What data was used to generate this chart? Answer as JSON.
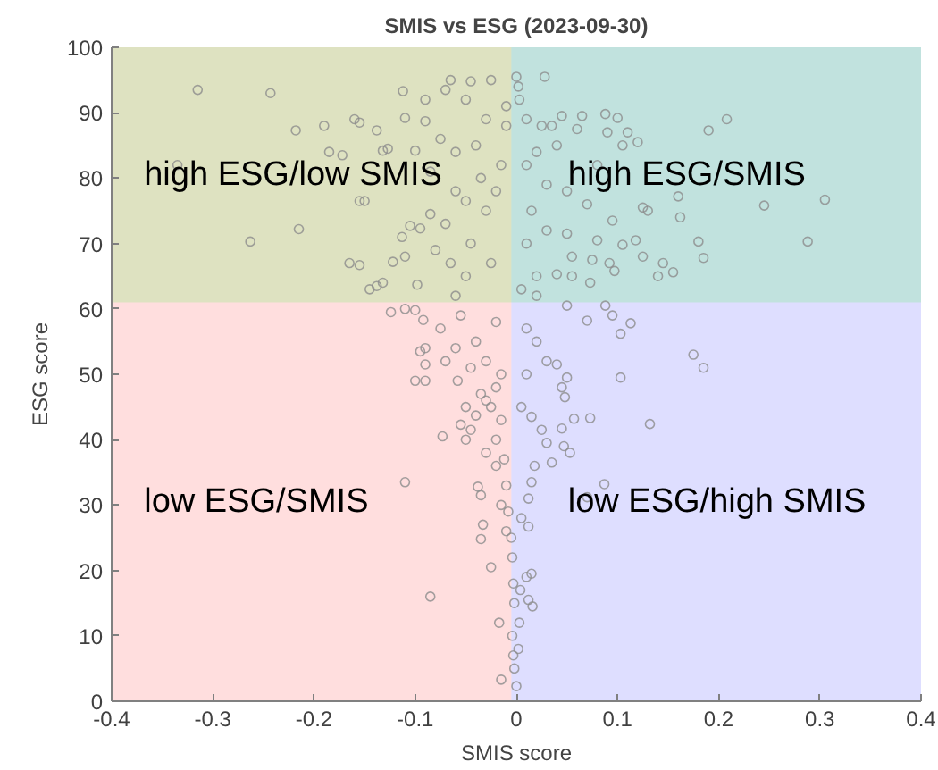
{
  "chart_data": {
    "type": "scatter",
    "title": "SMIS vs ESG (2023-09-30)",
    "xlabel": "SMIS score",
    "ylabel": "ESG score",
    "xlim": [
      -0.4,
      0.4
    ],
    "xticks": [
      -0.4,
      -0.3,
      -0.2,
      -0.1,
      0,
      0.1,
      0.2,
      0.3,
      0.4
    ],
    "ylim": [
      0,
      100
    ],
    "yticks": [
      0,
      10,
      20,
      30,
      40,
      50,
      60,
      70,
      80,
      90,
      100
    ],
    "grid": false,
    "marker": "circle",
    "bands": [
      {
        "axis": "x",
        "from": -0.4,
        "to": -0.005,
        "color": "#ff0000"
      },
      {
        "axis": "x",
        "from": -0.005,
        "to": 0.4,
        "color": "#0000ff"
      },
      {
        "axis": "y",
        "from": 61,
        "to": 100,
        "color": "#00ff00"
      }
    ],
    "annotations": [
      "high ESG/low SMIS",
      "high ESG/SMIS",
      "low ESG/SMIS",
      "low ESG/high SMIS"
    ],
    "series": [
      {
        "color": "#8c8c8c",
        "x": [
          -0.315,
          -0.243,
          -0.218,
          -0.19,
          -0.16,
          -0.155,
          -0.335,
          -0.263,
          -0.215,
          -0.172,
          -0.185,
          -0.155,
          -0.15,
          -0.138,
          -0.132,
          -0.127,
          -0.112,
          -0.11,
          -0.1,
          -0.09,
          -0.09,
          -0.065,
          -0.07,
          -0.045,
          -0.025,
          -0.05,
          -0.145,
          -0.138,
          -0.132,
          -0.165,
          -0.155,
          -0.122,
          -0.113,
          -0.11,
          -0.105,
          -0.095,
          -0.085,
          -0.098,
          -0.124,
          -0.11,
          -0.1,
          -0.092,
          -0.09,
          -0.095,
          -0.09,
          -0.1,
          -0.09,
          -0.07,
          -0.058,
          -0.073,
          -0.055,
          -0.05,
          -0.045,
          -0.11,
          -0.085,
          -0.033,
          -0.025,
          -0.017,
          -0.015,
          -0.035,
          -0.038,
          -0.035,
          -0.04,
          -0.03,
          -0.02,
          -0.04,
          -0.035,
          -0.03,
          -0.045,
          -0.025,
          -0.05,
          -0.06,
          -0.02,
          -0.04,
          -0.03,
          -0.015,
          -0.025,
          -0.02,
          -0.012,
          -0.01,
          -0.008,
          -0.005,
          -0.004,
          -0.003,
          -0.002,
          -0.004,
          -0.003,
          -0.002,
          -0.01,
          -0.015,
          -0.02,
          -0.06,
          -0.07,
          -0.08,
          -0.065,
          -0.055,
          -0.075,
          -0.06,
          -0.045,
          -0.035,
          -0.05,
          -0.015,
          -0.02,
          -0.03,
          -0.015,
          -0.01,
          -0.01,
          -0.03,
          -0.075,
          -0.06,
          -0.085,
          -0.05,
          0.028,
          0.0,
          0.002,
          0.003,
          0.01,
          0.025,
          0.035,
          0.045,
          0.065,
          0.088,
          0.1,
          0.208,
          0.19,
          0.09,
          0.11,
          0.105,
          0.12,
          0.08,
          0.06,
          0.04,
          0.02,
          0.01,
          0.03,
          0.05,
          0.07,
          0.095,
          0.13,
          0.125,
          0.16,
          0.162,
          0.245,
          0.305,
          0.288,
          0.18,
          0.185,
          0.155,
          0.14,
          0.145,
          0.125,
          0.118,
          0.105,
          0.097,
          0.092,
          0.075,
          0.073,
          0.055,
          0.055,
          0.04,
          0.02,
          0.01,
          0.015,
          0.03,
          0.05,
          0.08,
          0.005,
          0.02,
          0.05,
          0.088,
          0.095,
          0.113,
          0.103,
          0.07,
          0.175,
          0.185,
          0.103,
          0.05,
          0.045,
          0.048,
          0.04,
          0.03,
          0.02,
          0.01,
          0.01,
          0.005,
          0.015,
          0.025,
          0.045,
          0.057,
          0.073,
          0.132,
          0.047,
          0.053,
          0.03,
          0.035,
          0.018,
          0.015,
          0.087,
          0.07,
          0.012,
          0.012,
          0.005,
          0.01,
          0.015,
          0.012,
          0.016,
          0.002,
          0.0,
          0.003,
          0.004
        ],
        "values": [
          93.5,
          93,
          87.3,
          88,
          89,
          88.5,
          82,
          70.3,
          72.2,
          83.5,
          84,
          76.5,
          76.5,
          87.3,
          84.2,
          84.5,
          93.3,
          89.2,
          84.2,
          92,
          88.7,
          95,
          93.5,
          94.8,
          95,
          92,
          63,
          63.5,
          64,
          67,
          66.7,
          67.2,
          71,
          68,
          72.7,
          72.3,
          74.5,
          63.7,
          59.5,
          60,
          59.8,
          58.3,
          54,
          53.5,
          51.5,
          49,
          49,
          52,
          49,
          40.5,
          42.3,
          40,
          41.5,
          33.5,
          16,
          27,
          20.5,
          12,
          3.3,
          24.8,
          32.8,
          31.5,
          43.7,
          46,
          48,
          85,
          80,
          75,
          70,
          67,
          65,
          62,
          58,
          55,
          52,
          50,
          45,
          40,
          37,
          33,
          29,
          25,
          22,
          18,
          15,
          10,
          7,
          5,
          88,
          82,
          78,
          78,
          73,
          69,
          67,
          59,
          57,
          54,
          51,
          47,
          45,
          43,
          36,
          38,
          30,
          26,
          91,
          89,
          86,
          84,
          81,
          76.5,
          95.5,
          95.5,
          94,
          92,
          89,
          88,
          88,
          89.5,
          89.5,
          89.8,
          89.2,
          89,
          87.3,
          87,
          87,
          85,
          85.5,
          82,
          87.5,
          85,
          84,
          82,
          79,
          78,
          76,
          73.5,
          75,
          75.5,
          77.2,
          74,
          75.8,
          76.7,
          70.3,
          70.3,
          67.8,
          65.6,
          65,
          67,
          68,
          70.5,
          69.8,
          65.8,
          67,
          67.5,
          64,
          68,
          65,
          65.3,
          65,
          70,
          75,
          72,
          71.5,
          70.5,
          63,
          62,
          60.5,
          60.5,
          59,
          57.8,
          56.2,
          58.2,
          53,
          51,
          49.5,
          49.5,
          48,
          46.5,
          51.5,
          52,
          55,
          57,
          50,
          45,
          43.5,
          41.5,
          41.7,
          43.2,
          43.3,
          42.4,
          39,
          38,
          39.5,
          36.5,
          36,
          33.5,
          33.2,
          31.2,
          31,
          26.7,
          28,
          19,
          19.5,
          15.5,
          14.5,
          8,
          2.3,
          12,
          17
        ]
      }
    ]
  }
}
